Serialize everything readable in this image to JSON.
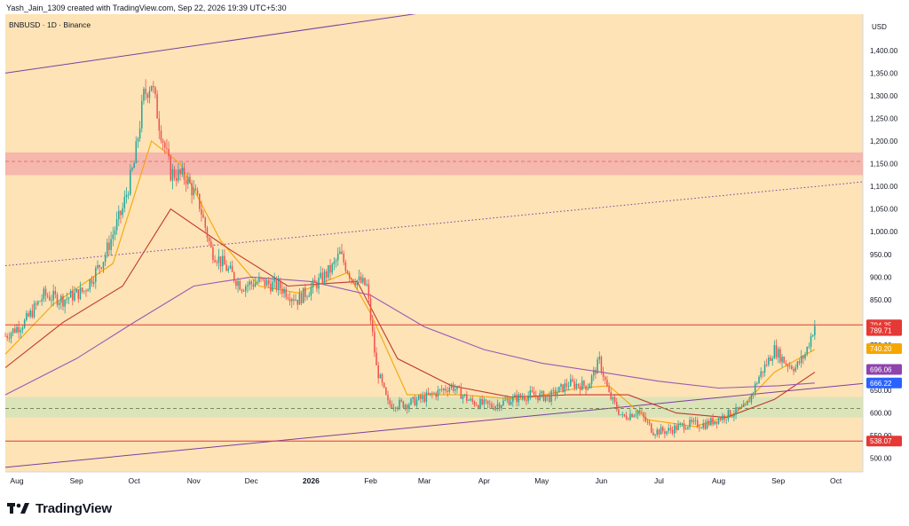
{
  "header": {
    "attribution": "Yash_Jain_1309 created with TradingView.com, Sep 22, 2026 19:39 UTC+5:30"
  },
  "chart_data": {
    "type": "candlestick",
    "symbol_label": "BNBUSD · 1D · Binance",
    "currency": "USD",
    "ylim": [
      470,
      1480
    ],
    "y_ticks": [
      500,
      550,
      600,
      650,
      700,
      750,
      800,
      850,
      900,
      950,
      1000,
      1050,
      1100,
      1150,
      1200,
      1250,
      1300,
      1350,
      1400
    ],
    "y_tick_labels": [
      "500.00",
      "550.00",
      "600.00",
      "650.00",
      "700.00",
      "750.00",
      "800.00",
      "850.00",
      "900.00",
      "950.00",
      "1,000.00",
      "1,050.00",
      "1,100.00",
      "1,150.00",
      "1,200.00",
      "1,250.00",
      "1,300.00",
      "1,350.00",
      "1,400.00"
    ],
    "x_labels": [
      "Aug",
      "Sep",
      "Oct",
      "Nov",
      "Dec",
      "2026",
      "Feb",
      "Mar",
      "Apr",
      "May",
      "Jun",
      "Jul",
      "Aug",
      "Sep",
      "Oct"
    ],
    "x_label_bold": "2026",
    "x_range": [
      "2025-07-26",
      "2026-10-15"
    ],
    "x_label_dates": [
      "2025-08-01",
      "2025-09-01",
      "2025-10-01",
      "2025-11-01",
      "2025-12-01",
      "2026-01-01",
      "2026-02-01",
      "2026-03-01",
      "2026-04-01",
      "2026-05-01",
      "2026-06-01",
      "2026-07-01",
      "2026-08-01",
      "2026-09-01",
      "2026-10-01"
    ],
    "price_path": [
      [
        "2025-07-26",
        770
      ],
      [
        "2025-08-05",
        800
      ],
      [
        "2025-08-15",
        860
      ],
      [
        "2025-08-25",
        850
      ],
      [
        "2025-09-05",
        870
      ],
      [
        "2025-09-15",
        940
      ],
      [
        "2025-09-25",
        1050
      ],
      [
        "2025-10-01",
        1150
      ],
      [
        "2025-10-06",
        1300
      ],
      [
        "2025-10-10",
        1330
      ],
      [
        "2025-10-14",
        1240
      ],
      [
        "2025-10-20",
        1130
      ],
      [
        "2025-10-28",
        1120
      ],
      [
        "2025-11-04",
        1060
      ],
      [
        "2025-11-10",
        960
      ],
      [
        "2025-11-18",
        920
      ],
      [
        "2025-11-26",
        880
      ],
      [
        "2025-12-05",
        890
      ],
      [
        "2025-12-15",
        880
      ],
      [
        "2025-12-25",
        850
      ],
      [
        "2026-01-05",
        890
      ],
      [
        "2026-01-12",
        920
      ],
      [
        "2026-01-16",
        950
      ],
      [
        "2026-01-22",
        900
      ],
      [
        "2026-01-30",
        880
      ],
      [
        "2026-02-04",
        700
      ],
      [
        "2026-02-10",
        620
      ],
      [
        "2026-02-20",
        620
      ],
      [
        "2026-03-05",
        640
      ],
      [
        "2026-03-15",
        660
      ],
      [
        "2026-03-25",
        625
      ],
      [
        "2026-04-05",
        615
      ],
      [
        "2026-04-15",
        630
      ],
      [
        "2026-04-25",
        640
      ],
      [
        "2026-05-05",
        635
      ],
      [
        "2026-05-15",
        665
      ],
      [
        "2026-05-25",
        660
      ],
      [
        "2026-05-31",
        715
      ],
      [
        "2026-06-05",
        640
      ],
      [
        "2026-06-12",
        590
      ],
      [
        "2026-06-20",
        605
      ],
      [
        "2026-06-28",
        560
      ],
      [
        "2026-07-05",
        560
      ],
      [
        "2026-07-15",
        575
      ],
      [
        "2026-07-25",
        575
      ],
      [
        "2026-08-05",
        595
      ],
      [
        "2026-08-15",
        610
      ],
      [
        "2026-08-22",
        680
      ],
      [
        "2026-08-30",
        740
      ],
      [
        "2026-09-05",
        710
      ],
      [
        "2026-09-10",
        700
      ],
      [
        "2026-09-15",
        730
      ],
      [
        "2026-09-20",
        794.35
      ]
    ],
    "moving_averages": [
      {
        "color": "#f7a600",
        "points": [
          [
            "2025-07-26",
            730
          ],
          [
            "2025-08-20",
            840
          ],
          [
            "2025-09-20",
            930
          ],
          [
            "2025-10-10",
            1200
          ],
          [
            "2025-10-25",
            1150
          ],
          [
            "2025-11-15",
            980
          ],
          [
            "2025-12-05",
            880
          ],
          [
            "2025-12-25",
            865
          ],
          [
            "2026-01-20",
            910
          ],
          [
            "2026-02-01",
            820
          ],
          [
            "2026-02-20",
            640
          ],
          [
            "2026-03-20",
            640
          ],
          [
            "2026-04-20",
            630
          ],
          [
            "2026-05-20",
            655
          ],
          [
            "2026-06-05",
            660
          ],
          [
            "2026-06-25",
            585
          ],
          [
            "2026-07-20",
            570
          ],
          [
            "2026-08-10",
            600
          ],
          [
            "2026-08-30",
            690
          ],
          [
            "2026-09-20",
            740.2
          ]
        ]
      },
      {
        "color": "#c0392b",
        "points": [
          [
            "2025-07-26",
            700
          ],
          [
            "2025-08-25",
            800
          ],
          [
            "2025-09-25",
            880
          ],
          [
            "2025-10-20",
            1050
          ],
          [
            "2025-11-20",
            960
          ],
          [
            "2025-12-20",
            880
          ],
          [
            "2026-01-25",
            890
          ],
          [
            "2026-02-15",
            720
          ],
          [
            "2026-03-15",
            660
          ],
          [
            "2026-04-15",
            635
          ],
          [
            "2026-05-15",
            640
          ],
          [
            "2026-06-15",
            640
          ],
          [
            "2026-07-10",
            600
          ],
          [
            "2026-08-05",
            590
          ],
          [
            "2026-08-30",
            630
          ],
          [
            "2026-09-20",
            690
          ]
        ]
      },
      {
        "color": "#9b59b6",
        "points": [
          [
            "2025-07-26",
            640
          ],
          [
            "2025-09-01",
            720
          ],
          [
            "2025-10-01",
            800
          ],
          [
            "2025-11-01",
            880
          ],
          [
            "2025-12-01",
            900
          ],
          [
            "2026-01-01",
            890
          ],
          [
            "2026-02-01",
            860
          ],
          [
            "2026-03-01",
            790
          ],
          [
            "2026-04-01",
            740
          ],
          [
            "2026-05-01",
            710
          ],
          [
            "2026-06-01",
            690
          ],
          [
            "2026-07-01",
            670
          ],
          [
            "2026-08-01",
            655
          ],
          [
            "2026-09-01",
            660
          ],
          [
            "2026-09-20",
            666.22
          ]
        ]
      }
    ],
    "horizontal_lines": [
      {
        "value": 794.35,
        "color": "#e53935"
      },
      {
        "value": 538.07,
        "color": "#e53935"
      },
      {
        "value": 1155,
        "color": "#e57373",
        "dashed": true
      },
      {
        "value": 610,
        "color": "#7a8a5a",
        "dashed": true
      }
    ],
    "zones": [
      {
        "from": 1125,
        "to": 1175,
        "color": "#f3a8a8"
      },
      {
        "from": 590,
        "to": 635,
        "color": "#cfe3b8"
      }
    ],
    "trendlines": [
      {
        "from": [
          "2025-07-26",
          1350
        ],
        "to": [
          "2026-06-01",
          1540
        ],
        "color": "#7b3fa0",
        "style": "solid"
      },
      {
        "from": [
          "2025-07-26",
          480
        ],
        "to": [
          "2026-10-15",
          665
        ],
        "color": "#7b3fa0",
        "style": "solid"
      },
      {
        "from": [
          "2025-07-26",
          925
        ],
        "to": [
          "2026-10-15",
          1110
        ],
        "color": "#7b3fa0",
        "style": "dotted"
      }
    ],
    "price_badges": [
      {
        "label": "794.35",
        "value": 794.35,
        "color": "#e53935"
      },
      {
        "label": "789.71",
        "value": 782,
        "color": "#e53935"
      },
      {
        "label": "740.20",
        "value": 742,
        "color": "#f7a600"
      },
      {
        "label": "696.06",
        "value": 696.06,
        "color": "#8e44ad"
      },
      {
        "label": "666.22",
        "value": 666.22,
        "color": "#2962ff"
      },
      {
        "label": "538.07",
        "value": 538.07,
        "color": "#e53935"
      }
    ],
    "colors": {
      "up": "#26a69a",
      "down": "#ef5350",
      "background": "#fde3b6",
      "axis_background": "#ffffff"
    }
  },
  "footer": {
    "brand": "TradingView"
  }
}
